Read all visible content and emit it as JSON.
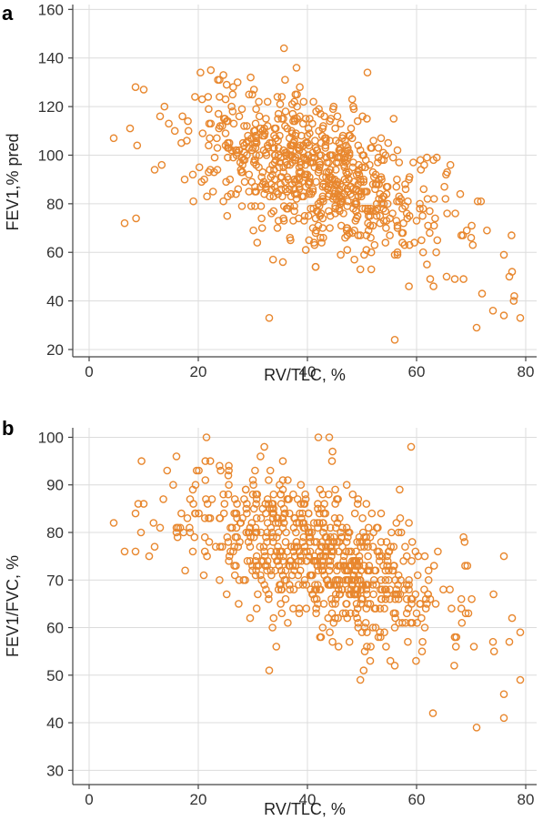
{
  "chart_data": [
    {
      "panel": "a",
      "type": "scatter",
      "xlabel": "RV/TLC, %",
      "ylabel": "FEV1,% pred",
      "xlim": [
        -3,
        82
      ],
      "ylim": [
        17,
        162
      ],
      "x_ticks": [
        0,
        20,
        40,
        60,
        80
      ],
      "y_ticks": [
        20,
        40,
        60,
        80,
        100,
        120,
        140,
        160
      ],
      "grid": true,
      "marker": "open-circle",
      "color": "#E8872E",
      "n_points": 760,
      "x_mean": 42,
      "x_sd": 11.5,
      "y_intercept": 126.0,
      "y_slope": -0.82,
      "y_noise_sd": 14.5,
      "x_range": [
        5,
        79
      ],
      "y_range": [
        24,
        144
      ],
      "seed": 7,
      "points": [
        [
          4.5,
          107
        ],
        [
          6.5,
          72
        ],
        [
          8.5,
          128
        ],
        [
          8.8,
          104
        ],
        [
          8.6,
          74
        ],
        [
          10,
          127
        ],
        [
          12,
          94
        ],
        [
          13,
          116
        ],
        [
          35.7,
          144
        ],
        [
          38,
          136
        ],
        [
          51,
          134
        ],
        [
          33,
          33
        ],
        [
          56,
          24
        ],
        [
          72,
          43
        ],
        [
          74,
          36
        ],
        [
          76,
          34
        ],
        [
          79,
          33
        ],
        [
          77,
          50
        ],
        [
          76,
          59
        ],
        [
          71,
          29
        ],
        [
          70,
          66
        ],
        [
          68,
          84
        ]
      ]
    },
    {
      "panel": "b",
      "type": "scatter",
      "xlabel": "RV/TLC, %",
      "ylabel": "FEV1/FVC, %",
      "xlim": [
        -3,
        82
      ],
      "ylim": [
        27,
        102
      ],
      "x_ticks": [
        0,
        20,
        40,
        60,
        80
      ],
      "y_ticks": [
        30,
        40,
        50,
        60,
        70,
        80,
        90,
        100
      ],
      "grid": true,
      "marker": "open-circle",
      "color": "#E8872E",
      "n_points": 760,
      "x_mean": 42,
      "x_sd": 11.5,
      "y_intercept": 92.0,
      "y_slope": -0.4,
      "y_noise_sd": 7.5,
      "x_range": [
        5,
        79
      ],
      "y_range": [
        39,
        100
      ],
      "seed": 11,
      "points": [
        [
          4.5,
          82
        ],
        [
          6.5,
          76
        ],
        [
          8.5,
          76
        ],
        [
          8.5,
          84
        ],
        [
          9,
          86
        ],
        [
          10,
          86
        ],
        [
          12,
          77
        ],
        [
          16,
          96
        ],
        [
          44,
          100
        ],
        [
          42,
          100
        ],
        [
          59,
          98
        ],
        [
          71,
          39
        ],
        [
          76,
          41
        ],
        [
          76,
          46
        ],
        [
          79,
          59
        ],
        [
          77,
          57
        ],
        [
          76,
          75
        ],
        [
          33,
          51
        ],
        [
          63,
          42
        ]
      ]
    }
  ]
}
